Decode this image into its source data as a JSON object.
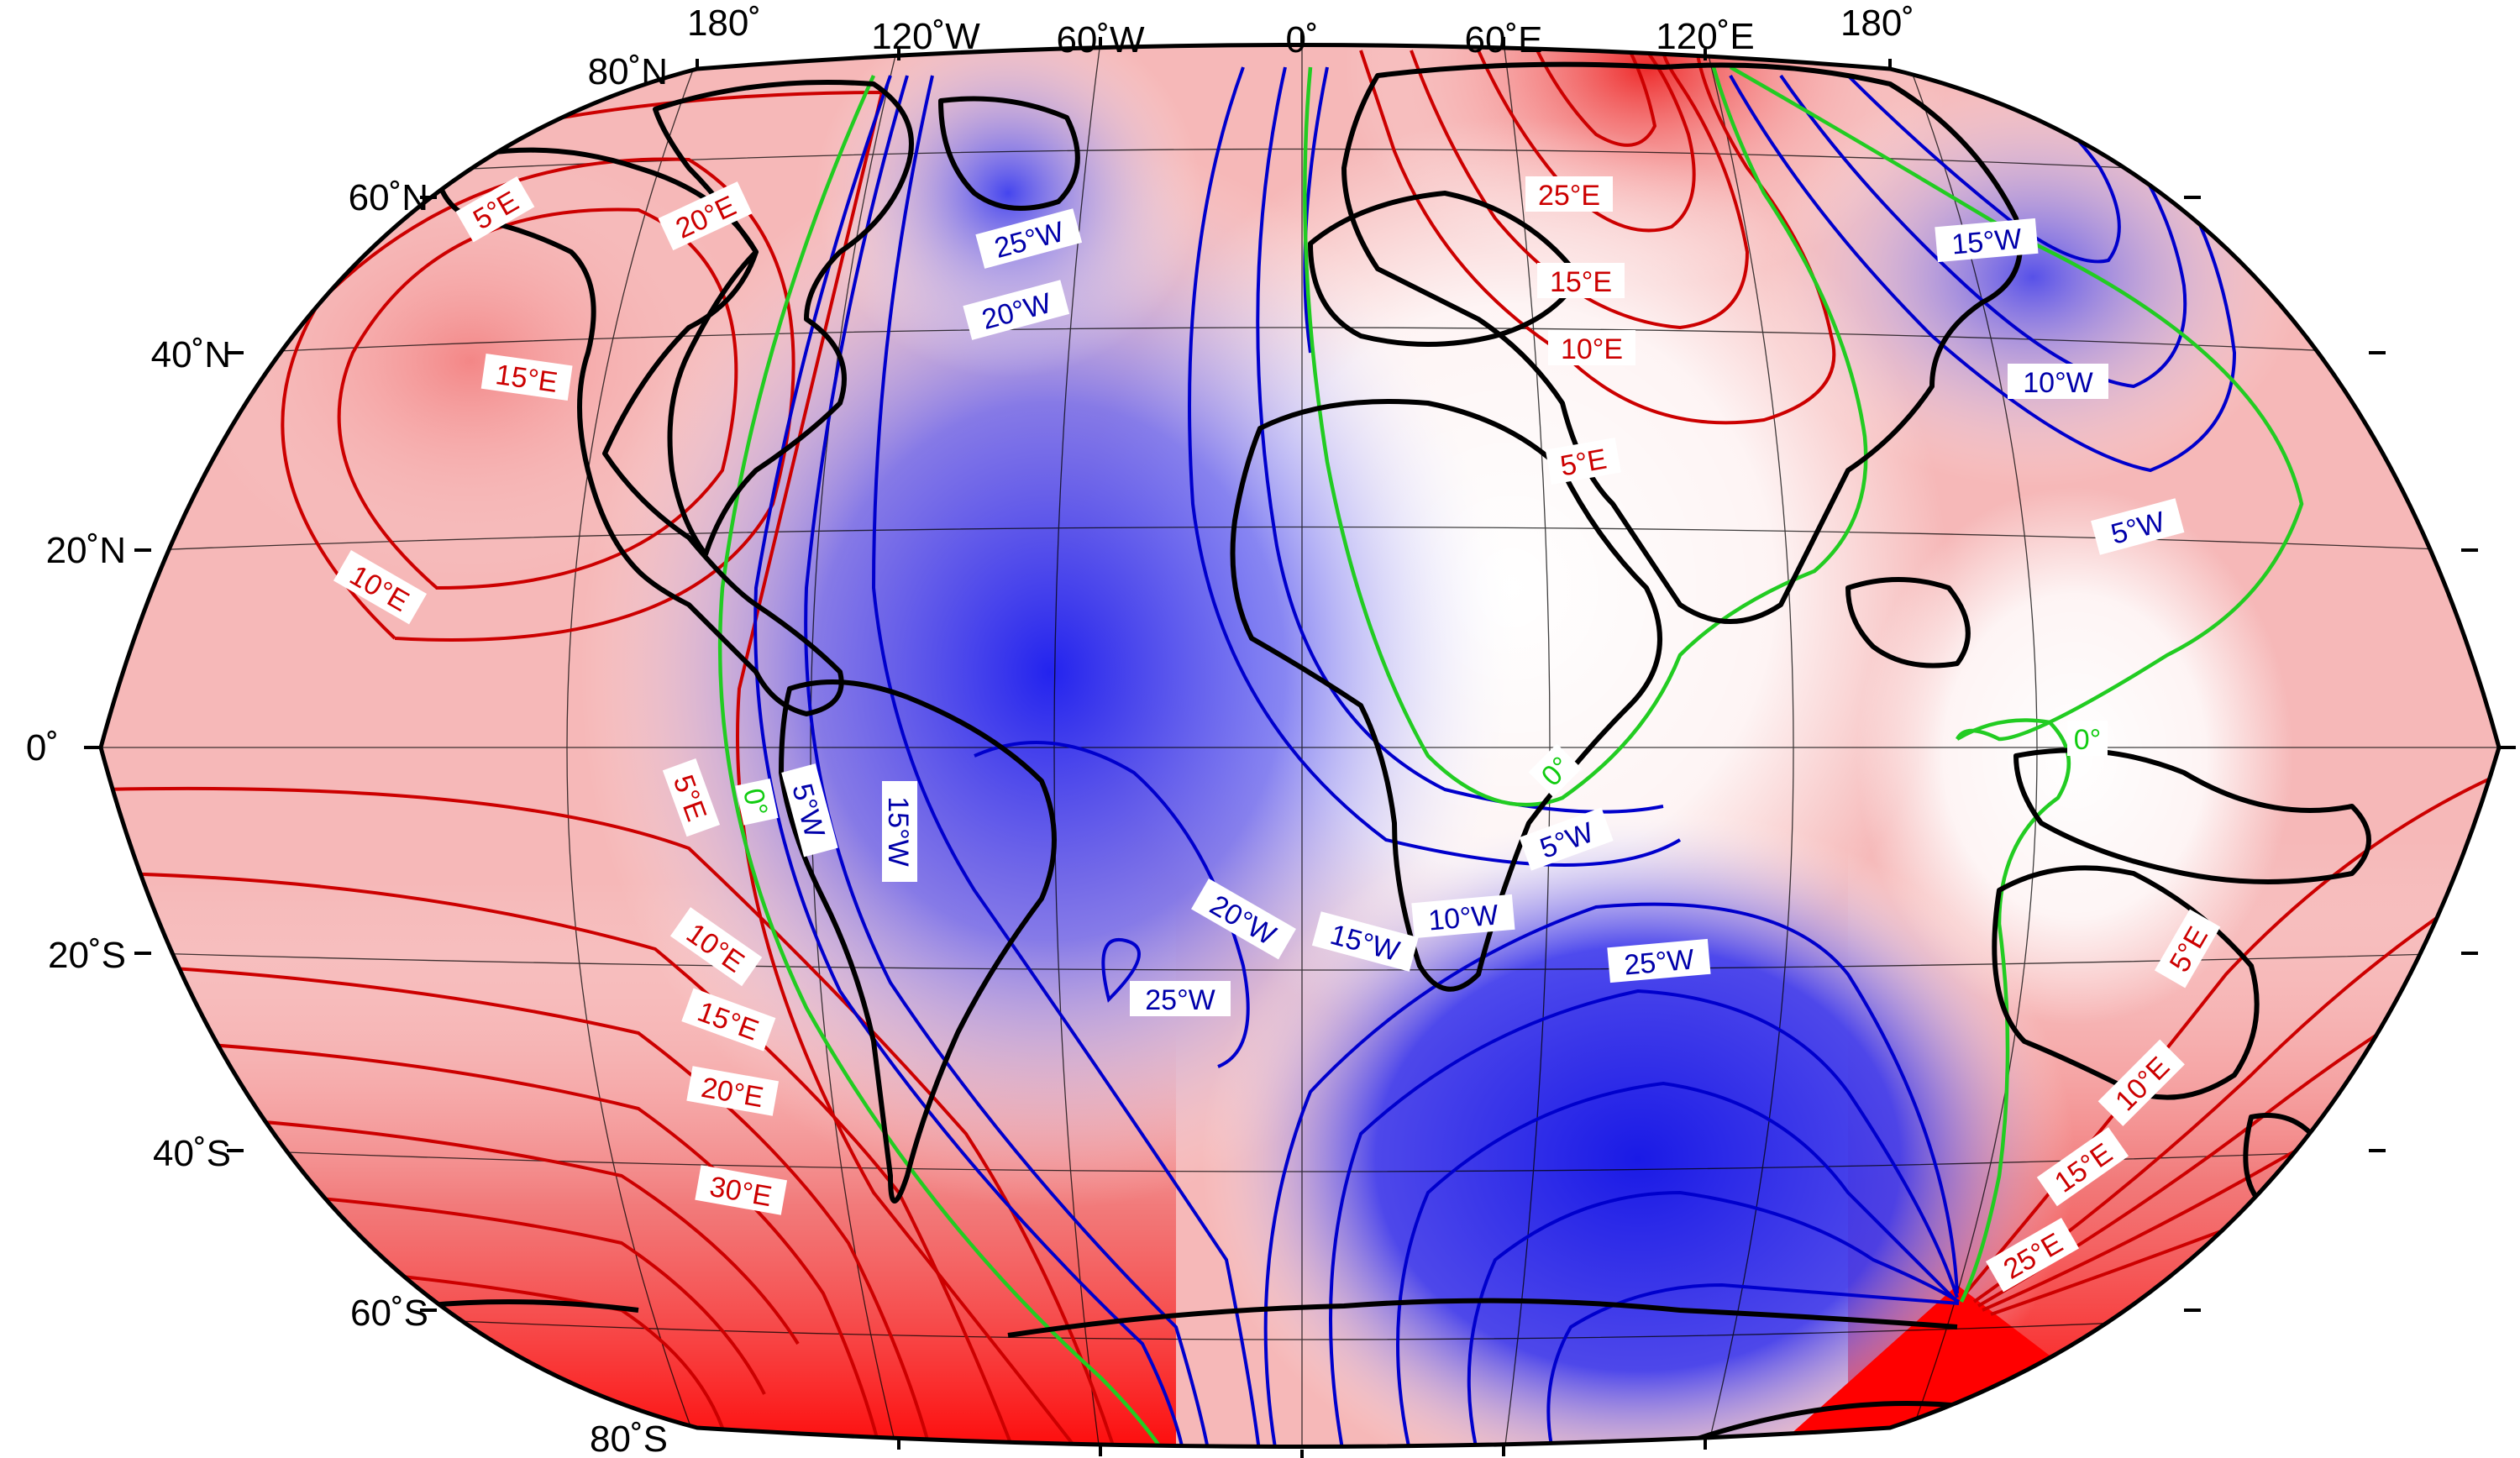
{
  "colors": {
    "east_declination": "#e01010",
    "west_declination": "#1010e0",
    "zero_line": "#22cc22",
    "coastline": "#000000"
  },
  "top_longitude_labels": [
    "180˚",
    "120˚W",
    "60˚W",
    "0˚",
    "60˚E",
    "120˚E",
    "180˚"
  ],
  "latitude_labels": [
    "80˚N",
    "60˚N",
    "40˚N",
    "20˚N",
    "0˚",
    "20˚S",
    "40˚S",
    "60˚S",
    "80˚S"
  ],
  "contour_labels": {
    "east": [
      "5°E",
      "20°E",
      "15°E",
      "10°E",
      "25°E",
      "15°E",
      "10°E",
      "5°E",
      "5°E",
      "10°E",
      "15°E",
      "20°E",
      "30°E",
      "5°E",
      "10°E",
      "15°E",
      "25°E"
    ],
    "west": [
      "25°W",
      "20°W",
      "15°W",
      "10°W",
      "5°W",
      "5°W",
      "15°W",
      "20°W",
      "25°W",
      "15°W",
      "10°W",
      "5°W",
      "25°W"
    ],
    "zero": [
      "0°",
      "0°",
      "0°"
    ]
  }
}
